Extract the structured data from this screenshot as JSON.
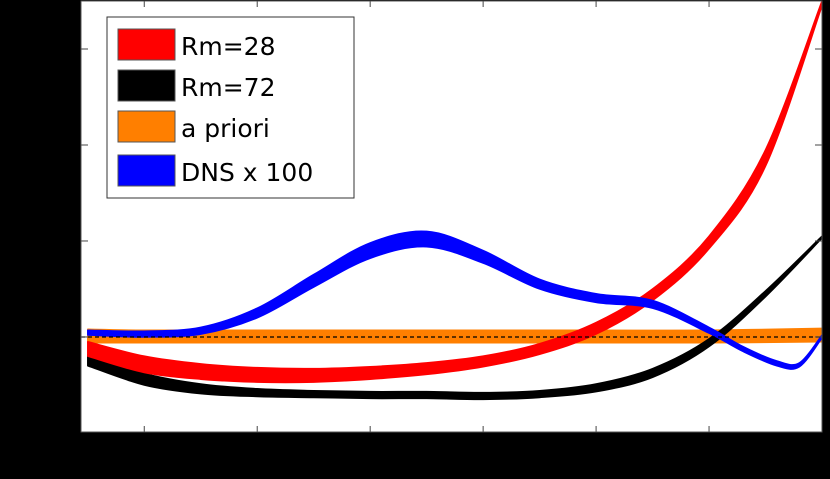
{
  "chart_data": {
    "type": "area",
    "title": "",
    "xlabel": "",
    "ylabel": "",
    "background": "#000000",
    "plot_background": "#ffffff",
    "x_ticks": [
      1,
      2,
      3,
      4,
      5,
      6
    ],
    "y_ticks": [
      0,
      1,
      2,
      3
    ],
    "tick_labels_visible": false,
    "xlim": [
      0.44,
      7.0
    ],
    "ylim": [
      -0.99,
      3.5
    ],
    "grid": false,
    "zero_line": {
      "y": 0,
      "style": "dashed",
      "color": "#000000"
    },
    "legend": {
      "position": "upper left",
      "entries": [
        {
          "label": "Rm=28",
          "color": "#ff0000"
        },
        {
          "label": "Rm=72",
          "color": "#000000"
        },
        {
          "label": "a priori",
          "color": "#ff7f00"
        },
        {
          "label": "DNS x 100",
          "color": "#0000ff"
        }
      ]
    },
    "series": [
      {
        "name": "a priori",
        "color": "#ff7f00",
        "x": [
          0.5,
          1.0,
          2.0,
          3.0,
          4.0,
          5.0,
          6.0,
          7.0
        ],
        "upper": [
          0.08,
          0.07,
          0.07,
          0.07,
          0.07,
          0.07,
          0.07,
          0.09
        ],
        "lower": [
          -0.06,
          -0.06,
          -0.06,
          -0.06,
          -0.06,
          -0.06,
          -0.06,
          -0.05
        ]
      },
      {
        "name": "Rm=28",
        "color": "#ff0000",
        "x": [
          0.5,
          1.0,
          1.5,
          2.0,
          2.5,
          3.0,
          3.5,
          4.0,
          4.5,
          5.0,
          5.5,
          6.0,
          6.5,
          7.0
        ],
        "upper": [
          -0.05,
          -0.2,
          -0.28,
          -0.32,
          -0.33,
          -0.31,
          -0.27,
          -0.2,
          -0.07,
          0.15,
          0.5,
          1.05,
          1.95,
          3.5
        ],
        "lower": [
          -0.2,
          -0.37,
          -0.44,
          -0.47,
          -0.47,
          -0.44,
          -0.39,
          -0.31,
          -0.18,
          0.03,
          0.38,
          0.92,
          1.78,
          3.45
        ]
      },
      {
        "name": "Rm=72",
        "color": "#000000",
        "x": [
          0.5,
          1.0,
          1.5,
          2.0,
          2.5,
          3.0,
          3.5,
          4.0,
          4.5,
          5.0,
          5.5,
          6.0,
          6.5,
          7.0
        ],
        "upper": [
          -0.18,
          -0.38,
          -0.49,
          -0.54,
          -0.56,
          -0.57,
          -0.57,
          -0.58,
          -0.56,
          -0.49,
          -0.33,
          -0.02,
          0.48,
          1.05
        ],
        "lower": [
          -0.3,
          -0.5,
          -0.59,
          -0.62,
          -0.63,
          -0.64,
          -0.64,
          -0.65,
          -0.63,
          -0.57,
          -0.42,
          -0.1,
          0.42,
          1.03
        ]
      },
      {
        "name": "DNS x 100",
        "color": "#0000ff",
        "x": [
          0.5,
          1.0,
          1.5,
          2.0,
          2.5,
          3.0,
          3.5,
          4.0,
          4.5,
          5.0,
          5.5,
          6.0,
          6.3,
          6.6,
          6.8,
          7.0
        ],
        "upper": [
          0.07,
          0.06,
          0.1,
          0.3,
          0.65,
          0.98,
          1.1,
          0.9,
          0.6,
          0.45,
          0.38,
          0.1,
          -0.1,
          -0.25,
          -0.27,
          0.02
        ],
        "lower": [
          0.02,
          0.0,
          0.03,
          0.2,
          0.52,
          0.82,
          0.94,
          0.77,
          0.5,
          0.36,
          0.3,
          0.04,
          -0.15,
          -0.3,
          -0.31,
          -0.01
        ]
      }
    ]
  }
}
